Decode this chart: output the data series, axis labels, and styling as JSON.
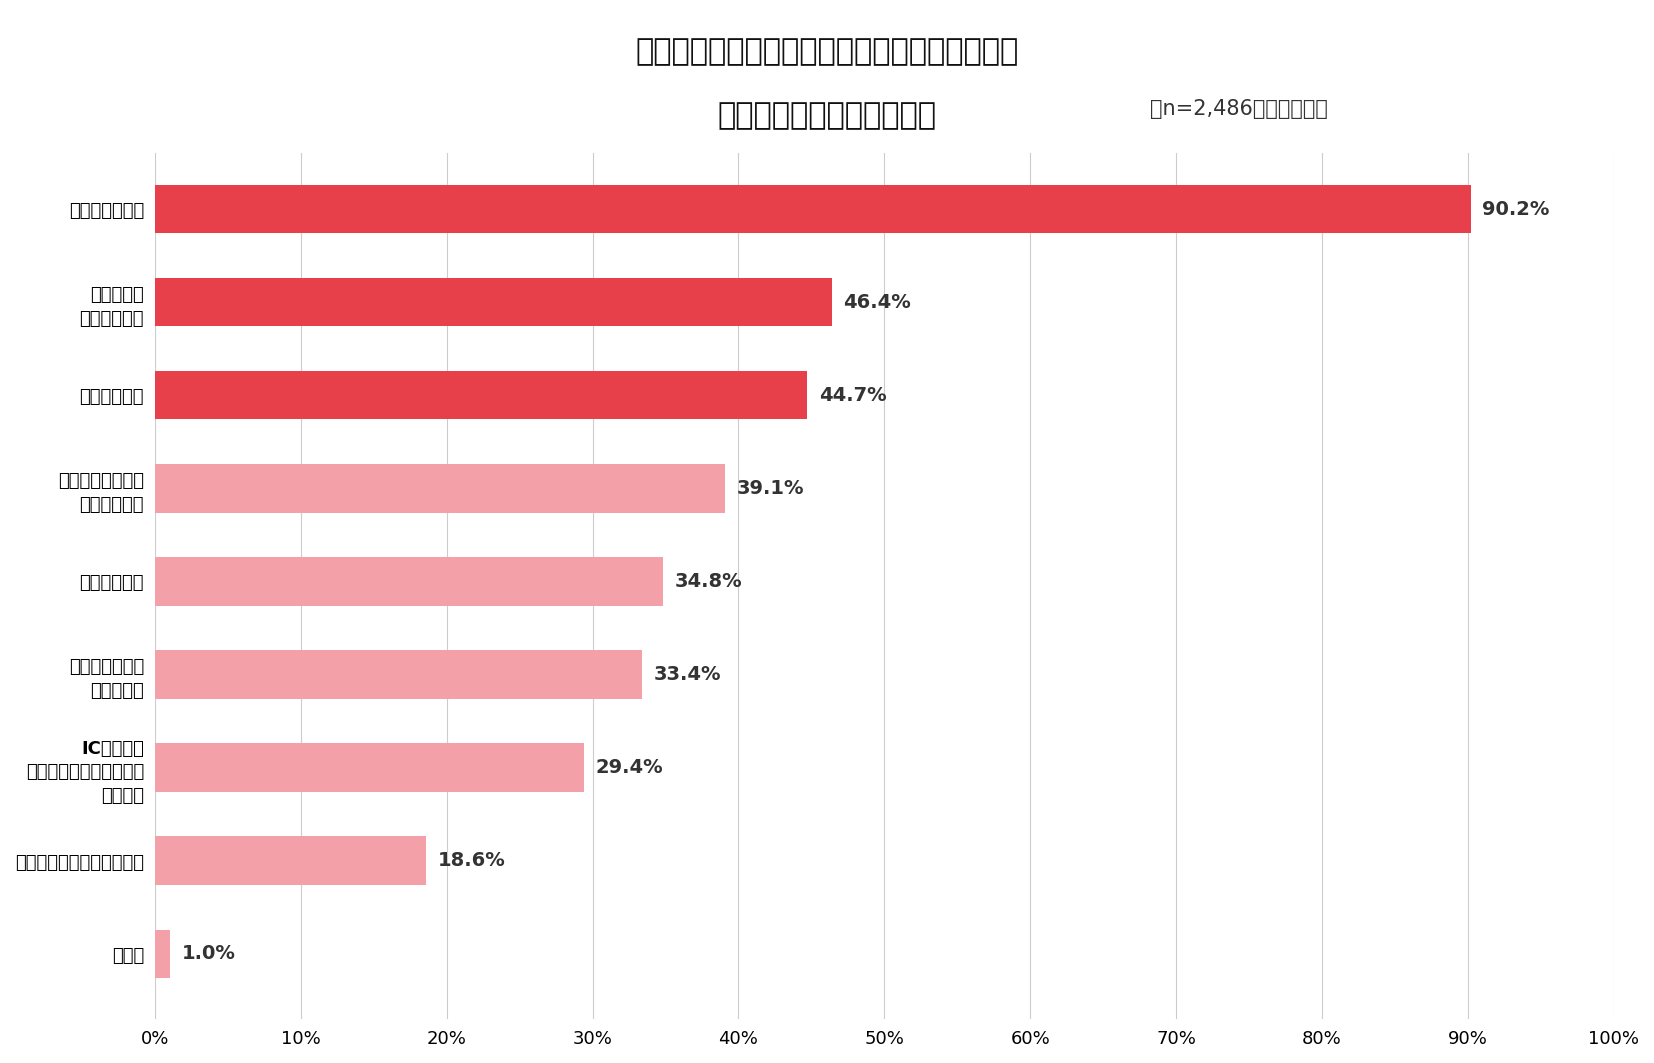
{
  "title_line1": "現在、公共交通機関を使用する際に行っている",
  "title_line2": "感染対策を教えてください",
  "title_suffix": "（n=2,486　複数回答）",
  "categories": [
    "マスクをつける",
    "手の消毒を\nこまめに行う",
    "混雑をさける",
    "利用後に手洗い、\nうがいをする",
    "会話を控える",
    "他の人と十分な\n距離をとる",
    "ICカードや\nチケットレスサービスを\n使用する",
    "目、鼻、口などを触らない",
    "その他"
  ],
  "values": [
    90.2,
    46.4,
    44.7,
    39.1,
    34.8,
    33.4,
    29.4,
    18.6,
    1.0
  ],
  "bar_colors": [
    "#e8404a",
    "#e8404a",
    "#e8404a",
    "#f4a0a8",
    "#f4a0a8",
    "#f4a0a8",
    "#f4a0a8",
    "#f4a0a8",
    "#f4a0a8"
  ],
  "xlim": [
    0,
    100
  ],
  "xticks": [
    0,
    10,
    20,
    30,
    40,
    50,
    60,
    70,
    80,
    90,
    100
  ],
  "xtick_labels": [
    "0%",
    "10%",
    "20%",
    "30%",
    "40%",
    "50%",
    "60%",
    "70%",
    "80%",
    "90%",
    "100%"
  ],
  "background_color": "#ffffff",
  "grid_color": "#cccccc",
  "title_fontsize": 22,
  "title_suffix_fontsize": 15,
  "bar_label_fontsize": 14,
  "ytick_fontsize": 13,
  "xtick_fontsize": 13
}
